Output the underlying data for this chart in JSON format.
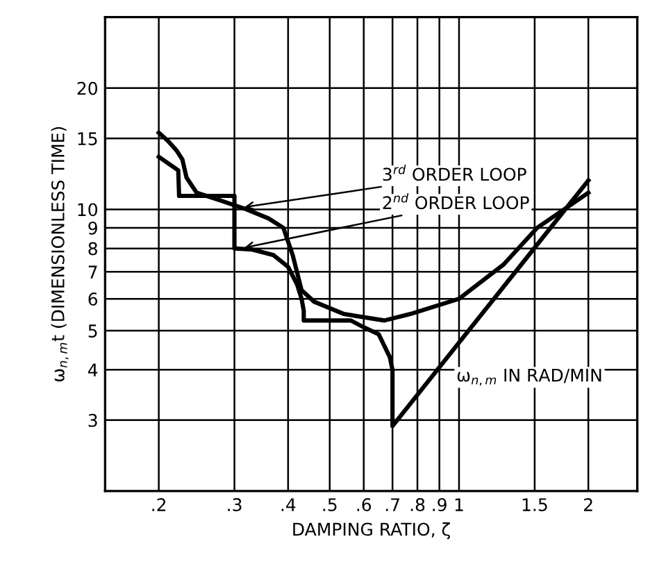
{
  "chart_data": {
    "type": "line",
    "xlabel": "DAMPING RATIO, ζ",
    "ylabel": "ω$_{n,m}$t (DIMENSIONLESS TIME)",
    "log": "xy",
    "xlim": [
      0.15,
      2.6
    ],
    "ylim": [
      2,
      30
    ],
    "xticks": [
      {
        "value": 0.2,
        "label": ".2"
      },
      {
        "value": 0.3,
        "label": ".3"
      },
      {
        "value": 0.4,
        "label": ".4"
      },
      {
        "value": 0.5,
        "label": ".5"
      },
      {
        "value": 0.6,
        "label": ".6"
      },
      {
        "value": 0.7,
        "label": ".7"
      },
      {
        "value": 0.8,
        "label": ".8"
      },
      {
        "value": 0.9,
        "label": ".9"
      },
      1,
      1.5,
      2
    ],
    "yticks": [
      3,
      4,
      5,
      6,
      7,
      8,
      9,
      10,
      15,
      20
    ],
    "grid": true,
    "legend": false,
    "series": [
      {
        "color": "#000000",
        "x": [
          0.2,
          0.21,
          0.22,
          0.227,
          0.232,
          0.245,
          0.28,
          0.32,
          0.36,
          0.39,
          0.41,
          0.43,
          0.46,
          0.54,
          0.67,
          0.77,
          1.0,
          1.27,
          1.52,
          2.0
        ],
        "values": [
          15.5,
          14.8,
          14.0,
          13.3,
          12.0,
          11.0,
          10.5,
          10.0,
          9.5,
          9.0,
          7.7,
          6.3,
          5.9,
          5.5,
          5.3,
          5.5,
          6.0,
          7.3,
          9.0,
          11.0
        ]
      },
      {
        "color": "#000000",
        "x": [
          0.2,
          0.215,
          0.222,
          0.223,
          0.3,
          0.3,
          0.33,
          0.37,
          0.4,
          0.42,
          0.43,
          0.435,
          0.435,
          0.56,
          0.6,
          0.65,
          0.69,
          0.7,
          0.7,
          2.0
        ],
        "values": [
          13.5,
          12.8,
          12.5,
          10.8,
          10.8,
          8.0,
          7.95,
          7.7,
          7.2,
          6.5,
          6.0,
          5.6,
          5.3,
          5.3,
          5.1,
          4.9,
          4.3,
          4.0,
          2.9,
          11.8
        ]
      }
    ],
    "annotations": [
      {
        "text": "3$^{rd}$ ORDER LOOP",
        "x": 0.31,
        "y": 10.1
      },
      {
        "text": "2$^{nd}$ ORDER LOOP",
        "x": 0.31,
        "y": 8.0
      },
      "ω$_{n,m}$ IN RAD/MIN"
    ]
  }
}
